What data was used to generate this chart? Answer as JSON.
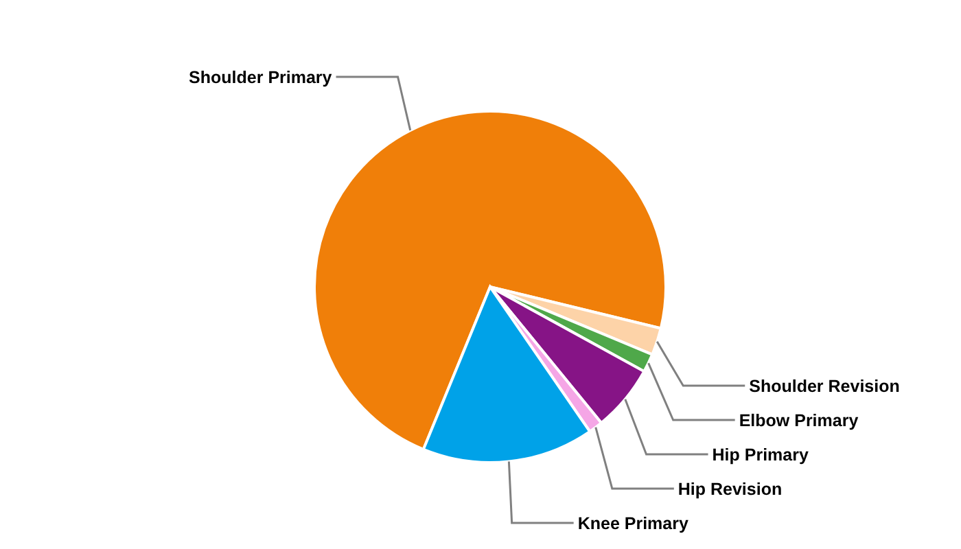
{
  "chart_data": {
    "type": "pie",
    "categories": [
      "Shoulder Primary",
      "Shoulder Revision",
      "Elbow Primary",
      "Hip Primary",
      "Hip Revision",
      "Knee Primary"
    ],
    "values": [
      72.6,
      2.5,
      1.7,
      6.1,
      1.3,
      15.8
    ],
    "colors": [
      "#f07f09",
      "#fdd3a8",
      "#4fa84a",
      "#861486",
      "#f5a6e6",
      "#00a2e8"
    ]
  }
}
